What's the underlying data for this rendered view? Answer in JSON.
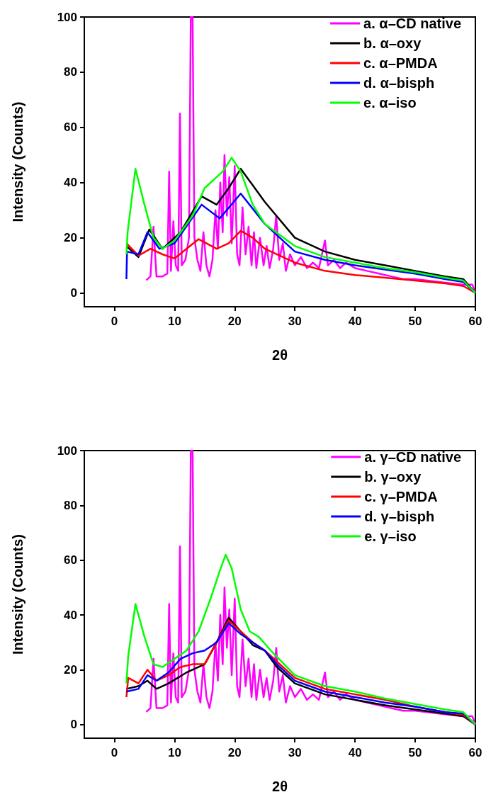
{
  "chart_data": [
    {
      "type": "line",
      "xlabel": "2θ",
      "ylabel": "Intensity (Counts)",
      "xlim": [
        -5,
        60
      ],
      "ylim": [
        -5,
        100
      ],
      "xticks": [
        0,
        10,
        20,
        30,
        40,
        50,
        60
      ],
      "yticks": [
        0,
        20,
        40,
        60,
        80,
        100
      ],
      "grid": false,
      "legend": "top right",
      "marker": "none",
      "line_style": "solid",
      "series": [
        {
          "name": "a. α–CD native",
          "color": "#ff00ff",
          "x": [
            5.3,
            6,
            6.5,
            7,
            8,
            8.8,
            9.1,
            9.4,
            9.8,
            10.2,
            10.6,
            10.9,
            11.2,
            11.8,
            12.4,
            12.7,
            13,
            13.3,
            13.8,
            14.3,
            14.8,
            15.3,
            15.8,
            16.3,
            16.8,
            17.2,
            17.6,
            18,
            18.3,
            18.7,
            19.1,
            19.5,
            20,
            20.4,
            20.8,
            21.3,
            21.8,
            22.3,
            22.8,
            23.2,
            23.6,
            24.2,
            24.8,
            25.3,
            25.8,
            26.4,
            26.9,
            27.4,
            28,
            28.5,
            29.2,
            30,
            31,
            32,
            33,
            34,
            35,
            35.5,
            36.5,
            37.5,
            38.5,
            40,
            42,
            44,
            46,
            48,
            50,
            52,
            54,
            56,
            58,
            59.5,
            60
          ],
          "values": [
            4.6,
            6,
            24,
            6,
            6,
            7,
            44,
            8,
            26,
            10,
            8,
            65,
            10,
            12,
            20,
            100,
            100,
            20,
            12,
            8,
            22,
            10,
            6,
            12,
            30,
            16,
            40,
            22,
            50,
            28,
            42,
            18,
            46,
            14,
            10,
            31,
            14,
            24,
            10,
            22,
            9,
            20,
            10,
            17,
            9,
            16,
            28,
            12,
            18,
            8,
            14,
            10,
            13,
            9,
            11,
            9,
            19,
            10,
            12,
            9,
            11,
            9,
            8,
            7,
            6,
            5,
            5,
            4.5,
            4,
            3.5,
            3,
            3,
            0
          ]
        },
        {
          "name": "b. α–oxy",
          "color": "#000000",
          "x": [
            2,
            4,
            5.8,
            8,
            11,
            14.5,
            17,
            19,
            21,
            23,
            25,
            30,
            35,
            40,
            45,
            50,
            55,
            58,
            60
          ],
          "values": [
            17,
            13,
            23,
            16,
            22,
            35,
            32,
            38,
            45,
            39,
            33,
            20,
            15,
            12,
            10,
            8,
            6,
            5,
            0
          ]
        },
        {
          "name": "c. α–PMDA",
          "color": "#ff0000",
          "x": [
            2,
            4,
            6,
            8,
            10,
            14,
            17,
            19,
            21,
            23,
            25,
            30,
            35,
            40,
            45,
            50,
            55,
            58,
            60
          ],
          "values": [
            18,
            13.5,
            16,
            14,
            12.5,
            19.5,
            16,
            18,
            22.5,
            20,
            16,
            11,
            8,
            6.5,
            5.5,
            4.5,
            3.5,
            2.5,
            0
          ]
        },
        {
          "name": "d. α–bisph",
          "color": "#0000ff",
          "x": [
            2,
            2.1,
            4,
            5.5,
            7.5,
            10,
            14.5,
            17.5,
            21,
            25,
            26.5,
            30,
            35,
            40,
            45,
            50,
            55,
            58,
            60
          ],
          "values": [
            5,
            15,
            14,
            22,
            16,
            18,
            32,
            27,
            36,
            25,
            22,
            15,
            12,
            10,
            8.5,
            7,
            5,
            4,
            0
          ]
        },
        {
          "name": "e. α–iso",
          "color": "#00ff00",
          "x": [
            2,
            2.2,
            3.5,
            5,
            6.5,
            8,
            10,
            13,
            15,
            16,
            18,
            19.5,
            21,
            23,
            25,
            30,
            35,
            40,
            45,
            50,
            55,
            58,
            60
          ],
          "values": [
            14,
            22,
            45,
            32,
            20,
            16,
            19,
            28,
            38,
            40,
            44,
            49,
            44,
            32,
            25,
            17,
            13,
            11,
            9,
            7.5,
            5.5,
            4.5,
            0
          ]
        }
      ]
    },
    {
      "type": "line",
      "xlabel": "2θ",
      "ylabel": "Intensity (Counts)",
      "xlim": [
        -5,
        60
      ],
      "ylim": [
        -5,
        100
      ],
      "xticks": [
        0,
        10,
        20,
        30,
        40,
        50,
        60
      ],
      "yticks": [
        0,
        20,
        40,
        60,
        80,
        100
      ],
      "grid": false,
      "legend": "top right",
      "marker": "none",
      "line_style": "solid",
      "series": [
        {
          "name": "a. γ–CD native",
          "color": "#ff00ff",
          "x": [
            5.3,
            6,
            6.5,
            7,
            8,
            8.8,
            9.1,
            9.4,
            9.8,
            10.2,
            10.6,
            10.9,
            11.2,
            11.8,
            12.4,
            12.7,
            13,
            13.3,
            13.8,
            14.3,
            14.8,
            15.3,
            15.8,
            16.3,
            16.8,
            17.2,
            17.6,
            18,
            18.3,
            18.7,
            19.1,
            19.5,
            20,
            20.4,
            20.8,
            21.3,
            21.8,
            22.3,
            22.8,
            23.2,
            23.6,
            24.2,
            24.8,
            25.3,
            25.8,
            26.4,
            26.9,
            27.4,
            28,
            28.5,
            29.2,
            30,
            31,
            32,
            33,
            34,
            35,
            35.5,
            36.5,
            37.5,
            38.5,
            40,
            42,
            44,
            46,
            48,
            50,
            52,
            54,
            56,
            58,
            59.5,
            60
          ],
          "values": [
            4.6,
            6,
            24,
            6,
            6,
            7,
            44,
            8,
            26,
            10,
            8,
            65,
            10,
            12,
            20,
            100,
            100,
            20,
            12,
            8,
            22,
            10,
            6,
            12,
            30,
            16,
            40,
            22,
            50,
            28,
            42,
            18,
            46,
            14,
            10,
            31,
            14,
            24,
            10,
            22,
            9,
            20,
            10,
            17,
            9,
            16,
            28,
            12,
            18,
            8,
            14,
            10,
            13,
            9,
            11,
            9,
            19,
            10,
            12,
            9,
            11,
            9,
            8,
            7,
            6,
            5,
            5,
            4.5,
            4,
            3.5,
            3,
            3,
            0
          ]
        },
        {
          "name": "b. γ–oxy",
          "color": "#000000",
          "x": [
            2,
            4,
            5.5,
            7,
            9,
            12,
            15,
            17,
            19,
            21,
            23,
            25,
            27,
            30,
            35,
            40,
            45,
            50,
            55,
            58,
            60
          ],
          "values": [
            13,
            14,
            16,
            13,
            15,
            19,
            22,
            30,
            39,
            34,
            29,
            27,
            21,
            15,
            11,
            9,
            7,
            5.5,
            4,
            3,
            0
          ]
        },
        {
          "name": "c. γ–PMDA",
          "color": "#ff0000",
          "x": [
            2,
            2.3,
            4,
            5.5,
            7,
            9,
            11,
            13,
            15,
            17,
            19,
            21,
            23,
            25,
            27,
            30,
            35,
            40,
            45,
            50,
            55,
            58,
            60
          ],
          "values": [
            10,
            17,
            15,
            20,
            16,
            18,
            21,
            22,
            22,
            30,
            38,
            34,
            30,
            27,
            23,
            17,
            13,
            11,
            9,
            6.5,
            4.5,
            3.5,
            0
          ]
        },
        {
          "name": "d. γ–bisph",
          "color": "#0000ff",
          "x": [
            2,
            4,
            5.5,
            7,
            9,
            11,
            13,
            15,
            17,
            19,
            21,
            23,
            25,
            27,
            30,
            35,
            40,
            45,
            50,
            55,
            58,
            60
          ],
          "values": [
            12,
            13,
            18,
            16,
            19,
            24,
            26,
            27,
            30,
            37,
            33,
            30,
            27,
            22,
            16,
            12,
            10,
            8,
            6.5,
            4.5,
            4,
            0
          ]
        },
        {
          "name": "e. γ–iso",
          "color": "#00ff00",
          "x": [
            2,
            2.3,
            3.5,
            5,
            6.5,
            8,
            10,
            12,
            14,
            16,
            17.5,
            18.5,
            19.5,
            21,
            22.5,
            24,
            26,
            30,
            35,
            40,
            45,
            50,
            55,
            58,
            60
          ],
          "values": [
            15,
            25,
            44,
            32,
            22,
            21,
            24,
            27,
            34,
            46,
            56,
            62,
            57,
            42,
            34,
            32,
            27,
            18,
            14,
            12,
            9.5,
            7.5,
            5.5,
            4.5,
            0
          ]
        }
      ]
    }
  ]
}
